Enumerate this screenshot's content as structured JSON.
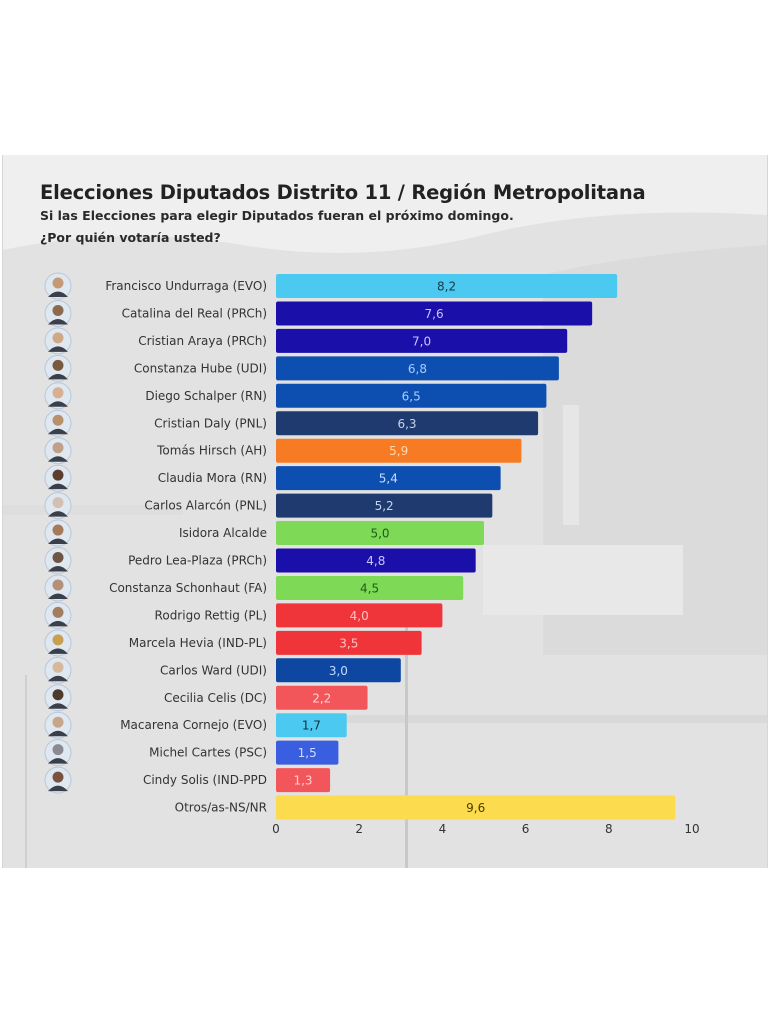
{
  "header": {
    "title": "Elecciones Diputados Distrito 11 / Región Metropolitana",
    "subtitle_line1": "Si las Elecciones para elegir Diputados fueran el próximo domingo.",
    "subtitle_line2": "¿Por quién votaría usted?"
  },
  "chart_data": {
    "type": "bar",
    "orientation": "horizontal",
    "title": "Elecciones Diputados Distrito 11 / Región Metropolitana",
    "subtitle": "Si las Elecciones para elegir Diputados fueran el próximo domingo. ¿Por quién votaría usted?",
    "xlabel": "",
    "ylabel": "",
    "xlim": [
      0,
      10
    ],
    "xticks": [
      "0",
      "2",
      "4",
      "6",
      "8",
      "10"
    ],
    "grid": false,
    "legend": "none",
    "categories": [
      "Francisco Undurraga (EVO)",
      "Catalina del Real (PRCh)",
      "Cristian Araya (PRCh)",
      "Constanza Hube (UDI)",
      "Diego Schalper (RN)",
      "Cristian Daly (PNL)",
      "Tomás Hirsch (AH)",
      "Claudia Mora (RN)",
      "Carlos Alarcón (PNL)",
      "Isidora Alcalde",
      "Pedro Lea-Plaza (PRCh)",
      "Constanza Schonhaut (FA)",
      "Rodrigo Rettig (PL)",
      "Marcela Hevia (IND-PL)",
      "Carlos Ward (UDI)",
      "Cecilia Celis (DC)",
      "Macarena Cornejo (EVO)",
      "Michel Cartes (PSC)",
      "Cindy Solis (IND-PPD",
      "Otros/as-NS/NR"
    ],
    "values": [
      8.2,
      7.6,
      7.0,
      6.8,
      6.5,
      6.3,
      5.9,
      5.4,
      5.2,
      5.0,
      4.8,
      4.5,
      4.0,
      3.5,
      3.0,
      2.2,
      1.7,
      1.5,
      1.3,
      9.6
    ],
    "value_labels": [
      "8,2",
      "7,6",
      "7,0",
      "6,8",
      "6,5",
      "6,3",
      "5,9",
      "5,4",
      "5,2",
      "5,0",
      "4,8",
      "4,5",
      "4,0",
      "3,5",
      "3,0",
      "2,2",
      "1,7",
      "1,5",
      "1,3",
      "9,6"
    ],
    "bar_colors": [
      "#4cc9f0",
      "#1a0fa8",
      "#1a0fa8",
      "#0d4fb0",
      "#0d4fb0",
      "#1f3a6e",
      "#f77b22",
      "#0d4fb0",
      "#1f3a6e",
      "#7ed957",
      "#1a0fa8",
      "#7ed957",
      "#f0353a",
      "#f0353a",
      "#0d47a1",
      "#f2555a",
      "#4cc9f0",
      "#3a5ee0",
      "#f2555a",
      "#fddb4e"
    ],
    "value_label_colors": [
      "#16394a",
      "#c9c3ff",
      "#c9c3ff",
      "#a9cbff",
      "#a9cbff",
      "#c7d3ea",
      "#ffd9b5",
      "#c5dcff",
      "#c7d3ea",
      "#1c5e14",
      "#c9c3ff",
      "#1c5e14",
      "#ffc2c3",
      "#ffc2c3",
      "#c5dcff",
      "#ffd0d1",
      "#0f3340",
      "#d1dbff",
      "#ffd0d1",
      "#4a3c00"
    ],
    "has_avatar": [
      true,
      true,
      true,
      true,
      true,
      true,
      true,
      true,
      true,
      true,
      true,
      true,
      true,
      true,
      true,
      true,
      true,
      true,
      true,
      false
    ],
    "avatar_colors": [
      "#c49a76",
      "#8b6a4d",
      "#cfa985",
      "#7a5a3e",
      "#d6b090",
      "#b8906b",
      "#c0a088",
      "#5c3e2e",
      "#d2c0b2",
      "#a47a5a",
      "#6e5544",
      "#b39078",
      "#a27d60",
      "#c9a052",
      "#d8b89a",
      "#4e3a2a",
      "#c8a68a",
      "#8a8a92",
      "#7a5240"
    ]
  }
}
